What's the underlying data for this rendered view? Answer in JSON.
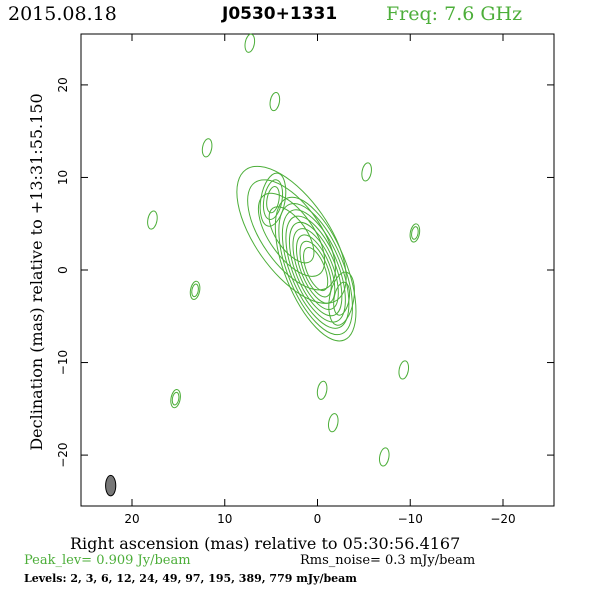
{
  "header": {
    "date": "2015.08.18",
    "source": "J0530+1331",
    "freq": "Freq: 7.6 GHz"
  },
  "chart_data": {
    "type": "contour",
    "title": "J0530+1331",
    "xlabel": "Right ascension (mas) relative to 05:30:56.4167",
    "ylabel": "Declination (mas) relative to +13:31:55.150",
    "xlim": [
      25.5,
      -25.5
    ],
    "ylim": [
      -25.5,
      25.5
    ],
    "x_ticks": [
      20,
      10,
      0,
      -10,
      -20
    ],
    "x_tick_labels": [
      "20",
      "10",
      "0",
      "−10",
      "−20"
    ],
    "y_ticks": [
      20,
      10,
      0,
      -10,
      -20
    ],
    "y_tick_labels": [
      "20",
      "10",
      "0",
      "−10",
      "−20"
    ],
    "contour_color": "#4cae39",
    "beam": {
      "x": 22.3,
      "y": -23.3,
      "major_mas": 2.2,
      "minor_mas": 1.1,
      "pa_deg": 0,
      "fill": "#777777"
    },
    "features": [
      {
        "name": "core",
        "x": 0.2,
        "y": 0.1,
        "levels": 9
      },
      {
        "name": "jet",
        "x": 2.8,
        "y": 3.8,
        "levels": 4
      },
      {
        "name": "knot",
        "x": 4.8,
        "y": 7.6,
        "levels": 3
      },
      {
        "name": "knot",
        "x": -2.6,
        "y": -3.1,
        "levels": 2
      },
      {
        "name": "noise",
        "x": 13.2,
        "y": -2.2,
        "levels": 2
      },
      {
        "name": "noise",
        "x": -10.5,
        "y": 4.0,
        "levels": 2
      },
      {
        "name": "noise",
        "x": 15.3,
        "y": -13.9,
        "levels": 2
      },
      {
        "name": "noise",
        "x": -0.5,
        "y": -13.0,
        "levels": 1
      },
      {
        "name": "noise",
        "x": 17.8,
        "y": 5.4,
        "levels": 1
      },
      {
        "name": "noise",
        "x": 11.9,
        "y": 13.2,
        "levels": 1
      },
      {
        "name": "noise",
        "x": 7.3,
        "y": 24.5,
        "levels": 1
      },
      {
        "name": "noise",
        "x": -5.3,
        "y": 10.6,
        "levels": 1
      },
      {
        "name": "noise",
        "x": -9.3,
        "y": -10.8,
        "levels": 1
      },
      {
        "name": "noise",
        "x": -7.2,
        "y": -20.2,
        "levels": 1
      },
      {
        "name": "noise",
        "x": 4.6,
        "y": 18.2,
        "levels": 1
      },
      {
        "name": "noise",
        "x": -1.7,
        "y": -16.5,
        "levels": 1
      }
    ],
    "peak_level": "Peak_lev=  0.909 Jy/beam",
    "rms_noise": "Rms_noise=  0.3 mJy/beam",
    "levels_text": "Levels:   2,    3,    6,   12,   24,   49,   97,  195,  389,  779  mJy/beam"
  }
}
